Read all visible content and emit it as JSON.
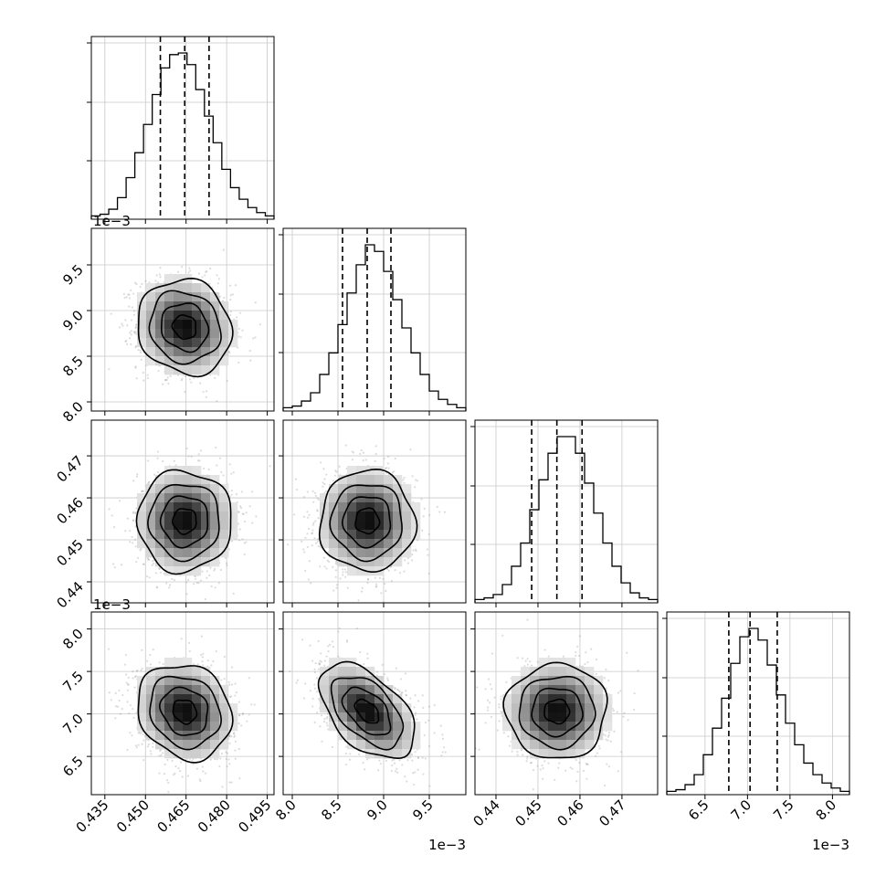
{
  "chart_data": {
    "type": "corner",
    "grid": true,
    "parameters": [
      {
        "range": [
          0.43,
          0.4975
        ],
        "ticks": [
          0.435,
          0.45,
          0.465,
          0.48,
          0.495
        ],
        "tick_labels": [
          "0.435",
          "0.450",
          "0.465",
          "0.480",
          "0.495"
        ],
        "offset_label": "1e−3",
        "mean": 0.4645,
        "sd": 0.0087,
        "quantiles": [
          0.4555,
          0.4645,
          0.4735
        ]
      },
      {
        "range": [
          7.9,
          9.9
        ],
        "ticks": [
          8.0,
          8.5,
          9.0,
          9.5
        ],
        "tick_labels": [
          "8.0",
          "8.5",
          "9.0",
          "9.5"
        ],
        "offset_label": "1e−3",
        "mean": 8.82,
        "sd": 0.26,
        "quantiles": [
          8.55,
          8.82,
          9.08
        ]
      },
      {
        "range": [
          0.435,
          0.4785
        ],
        "ticks": [
          0.44,
          0.45,
          0.46,
          0.47
        ],
        "tick_labels": [
          "0.44",
          "0.45",
          "0.46",
          "0.47"
        ],
        "offset_label": "",
        "mean": 0.4545,
        "sd": 0.006,
        "quantiles": [
          0.4485,
          0.4545,
          0.4605
        ]
      },
      {
        "range": [
          6.05,
          8.2
        ],
        "ticks": [
          6.5,
          7.0,
          7.5,
          8.0
        ],
        "tick_labels": [
          "6.5",
          "7.0",
          "7.5",
          "8.0"
        ],
        "offset_label": "1e−3",
        "mean": 7.03,
        "sd": 0.28,
        "quantiles": [
          6.78,
          7.03,
          7.35
        ]
      }
    ],
    "histograms_1d": [
      {
        "param": 0,
        "counts": [
          0.02,
          0.03,
          0.06,
          0.13,
          0.25,
          0.4,
          0.57,
          0.75,
          0.91,
          0.99,
          1.0,
          0.93,
          0.78,
          0.62,
          0.46,
          0.3,
          0.19,
          0.12,
          0.07,
          0.04,
          0.02
        ]
      },
      {
        "param": 1,
        "counts": [
          0.02,
          0.03,
          0.06,
          0.11,
          0.22,
          0.35,
          0.52,
          0.71,
          0.88,
          1.0,
          0.96,
          0.84,
          0.67,
          0.5,
          0.35,
          0.22,
          0.12,
          0.07,
          0.04,
          0.02
        ]
      },
      {
        "param": 2,
        "counts": [
          0.02,
          0.03,
          0.05,
          0.11,
          0.22,
          0.36,
          0.56,
          0.74,
          0.9,
          1.0,
          1.0,
          0.9,
          0.72,
          0.54,
          0.36,
          0.22,
          0.12,
          0.06,
          0.03,
          0.02
        ]
      },
      {
        "param": 3,
        "counts": [
          0.02,
          0.03,
          0.06,
          0.12,
          0.24,
          0.4,
          0.58,
          0.79,
          0.95,
          1.0,
          0.93,
          0.78,
          0.6,
          0.43,
          0.3,
          0.19,
          0.12,
          0.07,
          0.04,
          0.02
        ]
      }
    ],
    "histograms_2d": [
      {
        "x": 0,
        "y": 1,
        "center": [
          0.4645,
          8.82
        ],
        "corr": -0.1,
        "tilt_deg": -15
      },
      {
        "x": 0,
        "y": 2,
        "center": [
          0.4645,
          0.4545
        ],
        "corr": 0.0,
        "tilt_deg": 0
      },
      {
        "x": 1,
        "y": 2,
        "center": [
          8.82,
          0.4545
        ],
        "corr": 0.0,
        "tilt_deg": 0
      },
      {
        "x": 0,
        "y": 3,
        "center": [
          0.4645,
          7.03
        ],
        "corr": -0.15,
        "tilt_deg": -20
      },
      {
        "x": 1,
        "y": 3,
        "center": [
          8.82,
          7.03
        ],
        "corr": -0.5,
        "tilt_deg": -35
      },
      {
        "x": 2,
        "y": 3,
        "center": [
          0.4545,
          7.03
        ],
        "corr": 0.0,
        "tilt_deg": 0
      }
    ],
    "contour_levels_sigma": [
      0.5,
      1.0,
      1.5,
      2.0
    ]
  }
}
